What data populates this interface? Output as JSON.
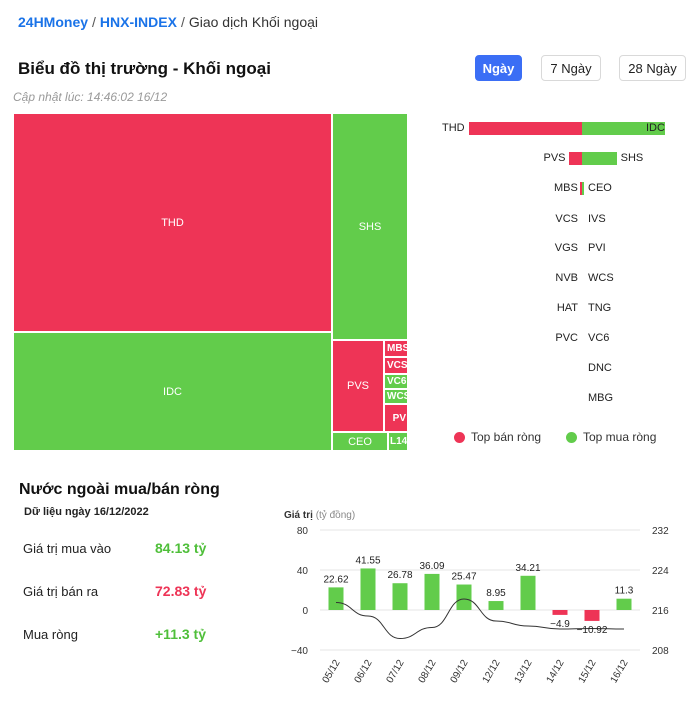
{
  "breadcrumb": {
    "home": "24HMoney",
    "index": "HNX-INDEX",
    "current": "Giao dịch Khối ngoại"
  },
  "market_map": {
    "title": "Biểu đồ thị trường - Khối ngoại",
    "tabs": [
      {
        "label": "Ngày",
        "active": true
      },
      {
        "label": "7 Ngày",
        "active": false
      },
      {
        "label": "28 Ngày",
        "active": false
      }
    ],
    "updated": "Cập nhật lúc: 14:46:02 16/12",
    "treemap_labels": {
      "thd": "THD",
      "shs": "SHS",
      "idc": "IDC",
      "pvs": "PVS",
      "ceo": "CEO",
      "mbs": "MBS",
      "vcs": "VCS",
      "vc6": "VC6",
      "wcs": "WCS",
      "pv": "PV",
      "l14": "L14"
    },
    "flow_bars": {
      "rows": [
        {
          "sell": "THD",
          "buy": "IDC",
          "sell_value": 23.5,
          "buy_value": 17.2
        },
        {
          "sell": "PVS",
          "buy": "SHS",
          "sell_value": 2.6,
          "buy_value": 7.2
        },
        {
          "sell": "MBS",
          "buy": "CEO",
          "sell_value": 0.1,
          "buy_value": 0.3
        },
        {
          "sell": "VCS",
          "buy": "IVS",
          "sell_value": 0,
          "buy_value": 0
        },
        {
          "sell": "VGS",
          "buy": "PVI",
          "sell_value": 0,
          "buy_value": 0
        },
        {
          "sell": "NVB",
          "buy": "WCS",
          "sell_value": 0,
          "buy_value": 0
        },
        {
          "sell": "HAT",
          "buy": "TNG",
          "sell_value": 0,
          "buy_value": 0
        },
        {
          "sell": "PVC",
          "buy": "VC6",
          "sell_value": 0,
          "buy_value": 0
        },
        {
          "sell": "",
          "buy": "DNC",
          "sell_value": 0,
          "buy_value": 0
        },
        {
          "sell": "",
          "buy": "MBG",
          "sell_value": 0,
          "buy_value": 0
        }
      ]
    },
    "legend": {
      "sell": "Top bán ròng",
      "buy": "Top mua ròng"
    },
    "colors": {
      "sell": "#ee3456",
      "buy": "#62cc4b",
      "accent": "#3b6ef5"
    }
  },
  "net_flow": {
    "title": "Nước ngoài mua/bán ròng",
    "data_date": "Dữ liệu ngày 16/12/2022",
    "stats": [
      {
        "label": "Giá trị mua vào",
        "value": "84.13 tỷ",
        "color": "#4fbf3a"
      },
      {
        "label": "Giá trị bán ra",
        "value": "72.83 tỷ",
        "color": "#ee3456"
      },
      {
        "label": "Mua ròng",
        "value": "+11.3 tỷ",
        "color": "#4fbf3a"
      }
    ]
  },
  "chart_data": {
    "type": "bar",
    "ylabel": "Giá trị",
    "ylabel_unit": "(tỷ đồng)",
    "categories": [
      "05/12",
      "06/12",
      "07/12",
      "08/12",
      "09/12",
      "12/12",
      "13/12",
      "14/12",
      "15/12",
      "16/12"
    ],
    "values": [
      22.62,
      41.55,
      26.78,
      36.09,
      25.47,
      8.95,
      34.21,
      -4.9,
      -10.92,
      11.3
    ],
    "value_labels": [
      "22.62",
      "41.55",
      "26.78",
      "36.09",
      "25.47",
      "8.95",
      "34.21",
      "−4.9",
      "−10.92",
      "11.3"
    ],
    "ylim": [
      -40,
      80
    ],
    "yticks": [
      80,
      40,
      0,
      -40
    ],
    "ytick_labels": [
      "80",
      "40",
      "0",
      "−40"
    ],
    "y2lim": [
      208,
      232
    ],
    "y2ticks": [
      232,
      224,
      216,
      208
    ],
    "index_line": [
      217.5,
      214.8,
      210.3,
      212.5,
      218.2,
      213.8,
      212.8,
      212.2,
      212.3,
      212.2
    ],
    "colors": {
      "positive": "#62cc4b",
      "negative": "#ee3456",
      "line": "#333333",
      "grid": "#e6e6e6"
    },
    "grid": true
  }
}
